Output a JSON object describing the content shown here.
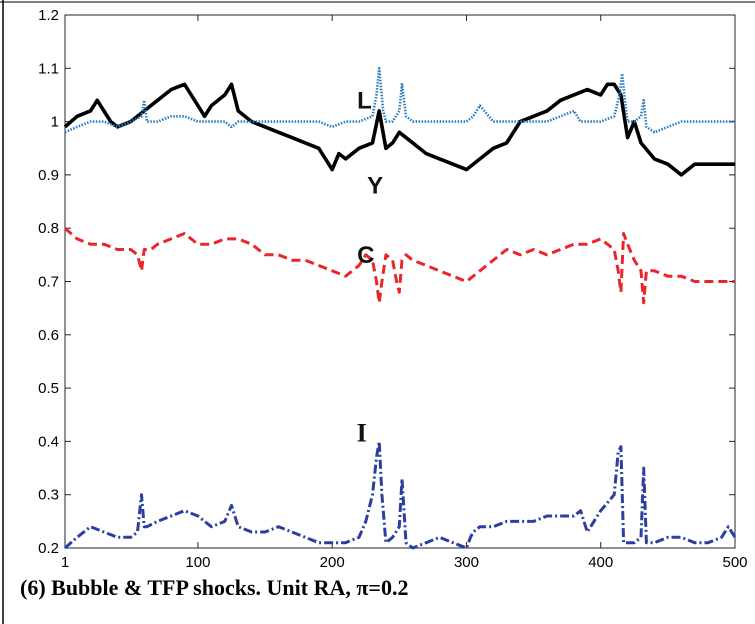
{
  "caption": "(6) Bubble & TFP shocks. Unit RA, π=0.2",
  "chart_data": {
    "type": "line",
    "title": "",
    "xlabel": "",
    "ylabel": "",
    "xlim": [
      1,
      500
    ],
    "ylim": [
      0.2,
      1.2
    ],
    "x_ticks": [
      1,
      100,
      200,
      300,
      400,
      500
    ],
    "y_ticks": [
      0.2,
      0.3,
      0.4,
      0.5,
      0.6,
      0.7,
      0.8,
      0.9,
      1,
      1.1,
      1.2
    ],
    "grid": false,
    "colors": {
      "Y": "#000000",
      "L": "#2b7bc0",
      "C": "#e8262b",
      "I": "#2c3fa1"
    },
    "series": [
      {
        "name": "Y",
        "style": "solid",
        "x": [
          1,
          10,
          20,
          25,
          35,
          40,
          50,
          60,
          70,
          80,
          90,
          95,
          100,
          105,
          110,
          120,
          125,
          130,
          140,
          150,
          160,
          170,
          180,
          190,
          195,
          200,
          205,
          210,
          220,
          230,
          235,
          240,
          245,
          250,
          260,
          270,
          280,
          290,
          300,
          310,
          320,
          330,
          340,
          350,
          360,
          370,
          380,
          390,
          400,
          405,
          410,
          415,
          420,
          425,
          430,
          440,
          450,
          460,
          470,
          480,
          490,
          500
        ],
        "values": [
          0.99,
          1.01,
          1.02,
          1.04,
          1.0,
          0.99,
          1.0,
          1.02,
          1.04,
          1.06,
          1.07,
          1.05,
          1.03,
          1.01,
          1.03,
          1.05,
          1.07,
          1.02,
          1.0,
          0.99,
          0.98,
          0.97,
          0.96,
          0.95,
          0.93,
          0.91,
          0.94,
          0.93,
          0.95,
          0.96,
          1.02,
          0.95,
          0.96,
          0.98,
          0.96,
          0.94,
          0.93,
          0.92,
          0.91,
          0.93,
          0.95,
          0.96,
          1.0,
          1.01,
          1.02,
          1.04,
          1.05,
          1.06,
          1.05,
          1.07,
          1.07,
          1.05,
          0.97,
          1.0,
          0.96,
          0.93,
          0.92,
          0.9,
          0.92,
          0.92,
          0.92,
          0.92
        ]
      },
      {
        "name": "L",
        "style": "dotted",
        "x": [
          1,
          10,
          20,
          30,
          40,
          50,
          58,
          60,
          62,
          70,
          80,
          90,
          100,
          110,
          120,
          125,
          130,
          140,
          150,
          160,
          170,
          180,
          190,
          200,
          210,
          220,
          230,
          233,
          235,
          238,
          240,
          245,
          250,
          252,
          255,
          260,
          270,
          280,
          290,
          300,
          305,
          310,
          320,
          330,
          340,
          350,
          360,
          370,
          380,
          385,
          390,
          400,
          410,
          414,
          416,
          418,
          420,
          425,
          430,
          432,
          434,
          440,
          450,
          460,
          470,
          480,
          490,
          500
        ],
        "values": [
          0.98,
          0.99,
          1.0,
          1.0,
          0.99,
          1.0,
          1.01,
          1.04,
          1.0,
          1.0,
          1.01,
          1.01,
          1.0,
          1.0,
          1.0,
          0.99,
          1.0,
          1.0,
          1.0,
          1.0,
          1.0,
          1.0,
          1.0,
          0.99,
          1.0,
          1.0,
          1.01,
          1.05,
          1.1,
          1.02,
          1.0,
          1.0,
          1.02,
          1.07,
          1.01,
          1.0,
          1.0,
          1.0,
          1.0,
          1.0,
          1.01,
          1.03,
          1.0,
          1.0,
          1.0,
          1.0,
          1.0,
          1.01,
          1.02,
          1.0,
          1.0,
          1.0,
          1.01,
          1.05,
          1.09,
          1.04,
          1.0,
          1.0,
          1.01,
          1.04,
          0.99,
          0.98,
          0.99,
          1.0,
          1.0,
          1.0,
          1.0,
          1.0
        ]
      },
      {
        "name": "C",
        "style": "dashed",
        "x": [
          1,
          10,
          20,
          30,
          40,
          50,
          55,
          58,
          60,
          65,
          70,
          80,
          90,
          100,
          110,
          120,
          130,
          140,
          150,
          160,
          170,
          180,
          190,
          200,
          210,
          220,
          225,
          230,
          233,
          235,
          237,
          240,
          245,
          248,
          250,
          252,
          255,
          260,
          270,
          280,
          290,
          300,
          310,
          320,
          330,
          340,
          350,
          360,
          370,
          380,
          390,
          400,
          410,
          413,
          415,
          417,
          420,
          425,
          430,
          432,
          434,
          440,
          450,
          460,
          470,
          480,
          490,
          500
        ],
        "values": [
          0.8,
          0.78,
          0.77,
          0.77,
          0.76,
          0.76,
          0.75,
          0.72,
          0.76,
          0.76,
          0.77,
          0.78,
          0.79,
          0.77,
          0.77,
          0.78,
          0.78,
          0.77,
          0.75,
          0.75,
          0.74,
          0.74,
          0.73,
          0.72,
          0.71,
          0.73,
          0.75,
          0.74,
          0.7,
          0.66,
          0.7,
          0.75,
          0.74,
          0.7,
          0.68,
          0.74,
          0.75,
          0.74,
          0.73,
          0.72,
          0.71,
          0.7,
          0.72,
          0.74,
          0.76,
          0.75,
          0.76,
          0.75,
          0.76,
          0.77,
          0.77,
          0.78,
          0.76,
          0.72,
          0.68,
          0.79,
          0.77,
          0.74,
          0.72,
          0.66,
          0.72,
          0.72,
          0.71,
          0.71,
          0.7,
          0.7,
          0.7,
          0.7
        ]
      },
      {
        "name": "I",
        "style": "dashdot",
        "x": [
          1,
          10,
          20,
          30,
          40,
          50,
          55,
          58,
          60,
          62,
          70,
          80,
          90,
          100,
          110,
          120,
          125,
          130,
          140,
          150,
          160,
          170,
          180,
          190,
          200,
          210,
          220,
          225,
          230,
          233,
          235,
          237,
          240,
          245,
          250,
          252,
          255,
          260,
          270,
          280,
          290,
          300,
          303,
          305,
          310,
          320,
          330,
          340,
          350,
          360,
          370,
          380,
          385,
          390,
          400,
          410,
          413,
          415,
          417,
          420,
          425,
          430,
          432,
          434,
          440,
          450,
          460,
          470,
          480,
          490,
          495,
          500
        ],
        "values": [
          0.2,
          0.22,
          0.24,
          0.23,
          0.22,
          0.22,
          0.23,
          0.3,
          0.24,
          0.24,
          0.25,
          0.26,
          0.27,
          0.26,
          0.24,
          0.25,
          0.28,
          0.24,
          0.23,
          0.23,
          0.24,
          0.23,
          0.22,
          0.21,
          0.21,
          0.21,
          0.22,
          0.25,
          0.3,
          0.37,
          0.4,
          0.3,
          0.21,
          0.22,
          0.24,
          0.33,
          0.21,
          0.2,
          0.21,
          0.22,
          0.21,
          0.2,
          0.22,
          0.23,
          0.24,
          0.24,
          0.25,
          0.25,
          0.25,
          0.26,
          0.26,
          0.26,
          0.27,
          0.23,
          0.27,
          0.3,
          0.38,
          0.39,
          0.21,
          0.21,
          0.21,
          0.22,
          0.35,
          0.21,
          0.21,
          0.22,
          0.22,
          0.21,
          0.21,
          0.22,
          0.24,
          0.22
        ]
      }
    ],
    "series_labels": [
      {
        "series": "L",
        "text": "L",
        "x": 224,
        "y": 1.025
      },
      {
        "series": "Y",
        "text": "Y",
        "x": 232,
        "y": 0.865
      },
      {
        "series": "C",
        "text": "C",
        "x": 225,
        "y": 0.735
      },
      {
        "series": "I",
        "text": "I",
        "x": 222,
        "y": 0.4
      }
    ]
  }
}
